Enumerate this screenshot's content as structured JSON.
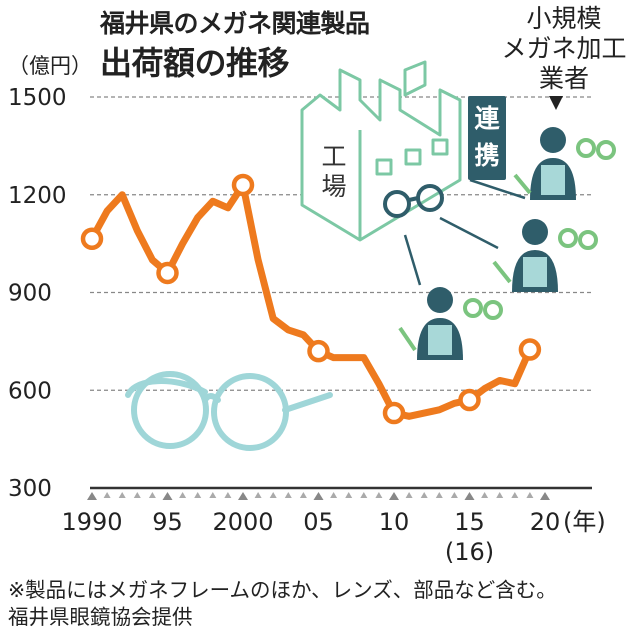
{
  "title": {
    "line1": "福井県のメガネ関連製品",
    "line2": "出荷額の推移"
  },
  "unit": "（億円）",
  "annotations": {
    "small_makers_lines": [
      "小規模",
      "メガネ加工",
      "業者"
    ],
    "factory_lines": [
      "工",
      "場"
    ],
    "link_lines": [
      "連",
      "携"
    ]
  },
  "footnote": {
    "line1": "※製品にはメガネフレームのほか、レンズ、部品など含む。",
    "line2": "福井県眼鏡協会提供"
  },
  "colors": {
    "series": "#ee7a1e",
    "glasses": "#9fd6d8",
    "figure_green": "#7bc47f",
    "figure_head": "#2f5d6a",
    "figure_body": "#a8d8d8",
    "factory_stroke": "#7cc8a4",
    "gridline": "#888888"
  },
  "chart_data": {
    "type": "line",
    "title": "福井県のメガネ関連製品 出荷額の推移",
    "ylabel": "（億円）",
    "xlabel": "(年)",
    "ylim": [
      300,
      1500
    ],
    "yticks": [
      300,
      600,
      900,
      1200,
      1500
    ],
    "ytick_labels": [
      "300",
      "600",
      "900",
      "1200",
      "1500"
    ],
    "xlim": [
      1990,
      2020
    ],
    "xtick_labels": [
      {
        "x": 1990,
        "label": "1990"
      },
      {
        "x": 1995,
        "label": "95"
      },
      {
        "x": 2000,
        "label": "2000"
      },
      {
        "x": 2005,
        "label": "05"
      },
      {
        "x": 2010,
        "label": "10"
      },
      {
        "x": 2015,
        "label": "15"
      },
      {
        "x": 2020,
        "label": "20"
      }
    ],
    "x_unit_label": "(年)",
    "x_sub_label": {
      "x": 2015,
      "label": "(16)"
    },
    "grid": true,
    "series": [
      {
        "x": [
          1990,
          1991,
          1992,
          1993,
          1994,
          1995,
          1996,
          1997,
          1998,
          1999,
          2000,
          2001,
          2002,
          2003,
          2004,
          2005,
          2006,
          2007,
          2008,
          2009,
          2010,
          2011,
          2012,
          2013,
          2014,
          2015,
          2016,
          2017,
          2018,
          2019
        ],
        "values": [
          1065,
          1150,
          1200,
          1090,
          1000,
          960,
          1050,
          1130,
          1180,
          1160,
          1230,
          1000,
          820,
          785,
          770,
          720,
          700,
          700,
          700,
          620,
          530,
          520,
          530,
          540,
          560,
          570,
          605,
          630,
          620,
          725
        ],
        "markers": [
          1990,
          1995,
          2000,
          2005,
          2010,
          2015,
          2019
        ]
      }
    ]
  }
}
